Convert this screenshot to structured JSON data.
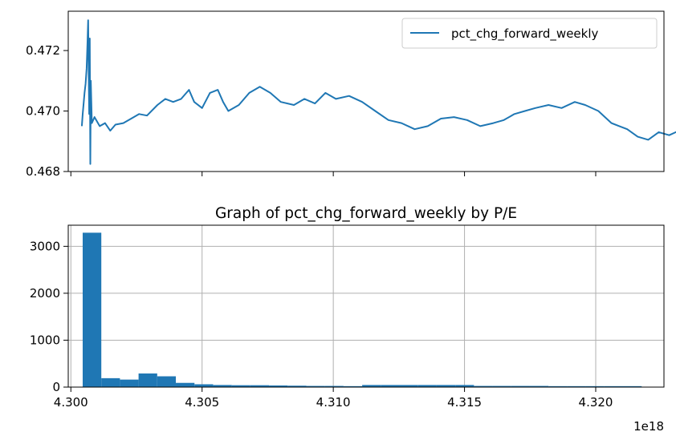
{
  "chart_data": [
    {
      "type": "line",
      "title": "",
      "xlabel": "",
      "ylabel": "",
      "ylim": [
        0.468,
        0.4733
      ],
      "xlim": [
        4.2999,
        4.3226
      ],
      "yticks": [
        "0.468",
        "0.470",
        "0.472"
      ],
      "ytick_values": [
        0.468,
        0.47,
        0.472
      ],
      "xtick_values": [
        4.3,
        4.305,
        4.31,
        4.315,
        4.32
      ],
      "grid": false,
      "legend": {
        "placement": "upper-right"
      },
      "color": "#1f77b4",
      "series": [
        {
          "name": "pct_chg_forward_weekly",
          "points": [
            [
              4.30042,
              0.46952
            ],
            [
              4.30045,
              0.4699
            ],
            [
              4.30048,
              0.4702
            ],
            [
              4.30052,
              0.4706
            ],
            [
              4.30056,
              0.4709
            ],
            [
              4.3006,
              0.4714
            ],
            [
              4.30063,
              0.4722
            ],
            [
              4.30066,
              0.473
            ],
            [
              4.30068,
              0.4712
            ],
            [
              4.3007,
              0.4699
            ],
            [
              4.30072,
              0.4724
            ],
            [
              4.30074,
              0.46825
            ],
            [
              4.30076,
              0.471
            ],
            [
              4.3008,
              0.4696
            ],
            [
              4.3009,
              0.4698
            ],
            [
              4.3011,
              0.4695
            ],
            [
              4.3013,
              0.4696
            ],
            [
              4.3015,
              0.46935
            ],
            [
              4.3017,
              0.46955
            ],
            [
              4.302,
              0.4696
            ],
            [
              4.3023,
              0.46975
            ],
            [
              4.3026,
              0.4699
            ],
            [
              4.3029,
              0.46985
            ],
            [
              4.3033,
              0.4702
            ],
            [
              4.3036,
              0.4704
            ],
            [
              4.3039,
              0.4703
            ],
            [
              4.3042,
              0.4704
            ],
            [
              4.3045,
              0.4707
            ],
            [
              4.3047,
              0.4703
            ],
            [
              4.305,
              0.4701
            ],
            [
              4.3053,
              0.4706
            ],
            [
              4.3056,
              0.4707
            ],
            [
              4.3058,
              0.4703
            ],
            [
              4.306,
              0.47
            ],
            [
              4.3064,
              0.4702
            ],
            [
              4.3068,
              0.4706
            ],
            [
              4.3072,
              0.4708
            ],
            [
              4.3076,
              0.4706
            ],
            [
              4.308,
              0.4703
            ],
            [
              4.3085,
              0.4702
            ],
            [
              4.3089,
              0.4704
            ],
            [
              4.3093,
              0.47025
            ],
            [
              4.3097,
              0.4706
            ],
            [
              4.3101,
              0.4704
            ],
            [
              4.3106,
              0.4705
            ],
            [
              4.3111,
              0.4703
            ],
            [
              4.3116,
              0.47
            ],
            [
              4.3121,
              0.4697
            ],
            [
              4.3126,
              0.4696
            ],
            [
              4.3131,
              0.4694
            ],
            [
              4.3136,
              0.4695
            ],
            [
              4.3141,
              0.46975
            ],
            [
              4.3146,
              0.4698
            ],
            [
              4.3151,
              0.4697
            ],
            [
              4.3156,
              0.4695
            ],
            [
              4.3161,
              0.4696
            ],
            [
              4.3165,
              0.4697
            ],
            [
              4.3169,
              0.4699
            ],
            [
              4.3173,
              0.47
            ],
            [
              4.3177,
              0.4701
            ],
            [
              4.3182,
              0.4702
            ],
            [
              4.3187,
              0.4701
            ],
            [
              4.3192,
              0.4703
            ],
            [
              4.3196,
              0.4702
            ],
            [
              4.3201,
              0.47
            ],
            [
              4.3206,
              0.4696
            ],
            [
              4.3209,
              0.4695
            ],
            [
              4.3212,
              0.4694
            ],
            [
              4.3216,
              0.46915
            ],
            [
              4.322,
              0.46905
            ],
            [
              4.3224,
              0.4693
            ],
            [
              4.3228,
              0.4692
            ],
            [
              4.3233,
              0.4694
            ],
            [
              4.3238,
              0.46955
            ],
            [
              4.3242,
              0.46975
            ]
          ]
        }
      ]
    },
    {
      "type": "bar",
      "title": "Graph of pct_chg_forward_weekly by P/E",
      "xlabel": "",
      "ylabel": "",
      "ylim": [
        0,
        3450
      ],
      "xlim": [
        4.2999,
        4.3226
      ],
      "xticks": [
        "4.300",
        "4.305",
        "4.310",
        "4.315",
        "4.320"
      ],
      "xtick_values": [
        4.3,
        4.305,
        4.31,
        4.315,
        4.32
      ],
      "yticks": [
        "0",
        "1000",
        "2000",
        "3000"
      ],
      "ytick_values": [
        0,
        1000,
        2000,
        3000
      ],
      "x_offset_label": "1e18",
      "grid": true,
      "color": "#1f77b4",
      "bin_edges": [
        4.30045,
        4.30116,
        4.30187,
        4.30258,
        4.30329,
        4.304,
        4.30471,
        4.30542,
        4.30613,
        4.30684,
        4.30755,
        4.30826,
        4.30897,
        4.30968,
        4.31039,
        4.3111,
        4.31181,
        4.31252,
        4.31323,
        4.31394,
        4.31465,
        4.31536,
        4.31607,
        4.31678,
        4.31749,
        4.3182,
        4.31891,
        4.31962,
        4.32033,
        4.32104,
        4.32175
      ],
      "values": [
        3290,
        190,
        160,
        290,
        230,
        90,
        60,
        45,
        40,
        40,
        35,
        30,
        25,
        25,
        20,
        45,
        45,
        45,
        45,
        45,
        45,
        25,
        25,
        25,
        25,
        20,
        20,
        20,
        20,
        20
      ]
    }
  ]
}
